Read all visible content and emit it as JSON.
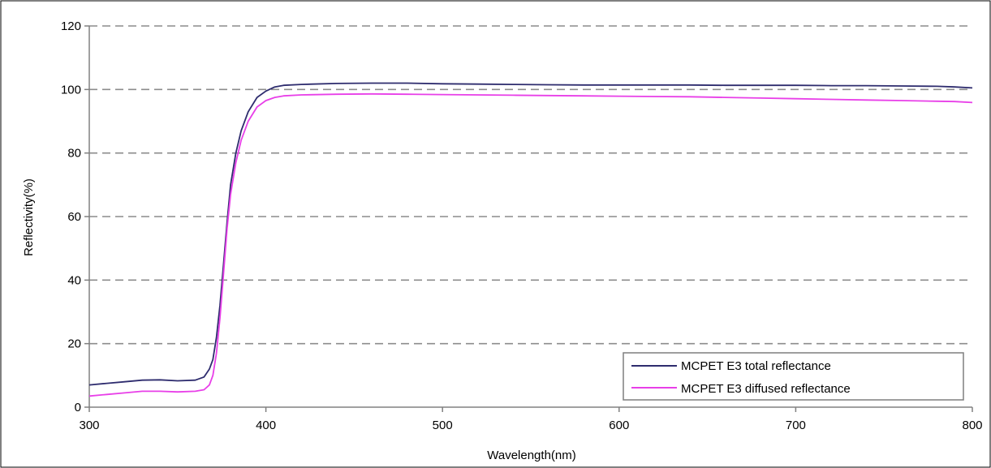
{
  "chart_data": {
    "type": "line",
    "xlabel": "Wavelength(nm)",
    "ylabel": "Reflectivity(%)",
    "xlim": [
      300,
      800
    ],
    "ylim": [
      0,
      120
    ],
    "x_ticks": [
      300,
      400,
      500,
      600,
      700,
      800
    ],
    "y_ticks": [
      0,
      20,
      40,
      60,
      80,
      100,
      120
    ],
    "grid": "horizontal-dashed",
    "legend_position": "bottom-right",
    "series": [
      {
        "name": "MCPET E3 total reflectance",
        "color": "#2e2c6e",
        "x": [
          300,
          310,
          320,
          330,
          340,
          350,
          360,
          365,
          368,
          370,
          372,
          374,
          376,
          378,
          380,
          383,
          386,
          390,
          395,
          400,
          405,
          410,
          420,
          440,
          460,
          480,
          500,
          520,
          540,
          560,
          580,
          600,
          620,
          640,
          660,
          680,
          700,
          720,
          740,
          760,
          780,
          790,
          800
        ],
        "y": [
          7,
          7.5,
          8,
          8.5,
          8.6,
          8.3,
          8.5,
          9.5,
          12,
          15,
          22,
          32,
          45,
          58,
          70,
          80,
          87,
          93,
          97.5,
          99.5,
          100.8,
          101.3,
          101.6,
          101.9,
          102,
          102,
          101.8,
          101.7,
          101.6,
          101.5,
          101.4,
          101.4,
          101.4,
          101.4,
          101.3,
          101.3,
          101.3,
          101.2,
          101.2,
          101.1,
          101,
          100.8,
          100.5
        ]
      },
      {
        "name": "MCPET E3 diffused reflectance",
        "color": "#e83fe8",
        "x": [
          300,
          310,
          320,
          330,
          340,
          350,
          360,
          365,
          368,
          370,
          372,
          374,
          376,
          378,
          380,
          383,
          386,
          390,
          395,
          400,
          405,
          410,
          420,
          440,
          460,
          480,
          500,
          520,
          540,
          560,
          580,
          600,
          620,
          640,
          660,
          680,
          700,
          720,
          740,
          760,
          780,
          790,
          800
        ],
        "y": [
          3.5,
          4,
          4.5,
          5,
          5,
          4.8,
          5,
          5.5,
          7,
          10,
          17,
          28,
          42,
          56,
          67,
          77,
          84,
          90,
          94.5,
          96.5,
          97.5,
          98,
          98.3,
          98.5,
          98.6,
          98.5,
          98.4,
          98.3,
          98.2,
          98.1,
          98,
          97.9,
          97.8,
          97.7,
          97.5,
          97.3,
          97.1,
          96.9,
          96.7,
          96.5,
          96.3,
          96.2,
          95.9
        ]
      }
    ]
  }
}
